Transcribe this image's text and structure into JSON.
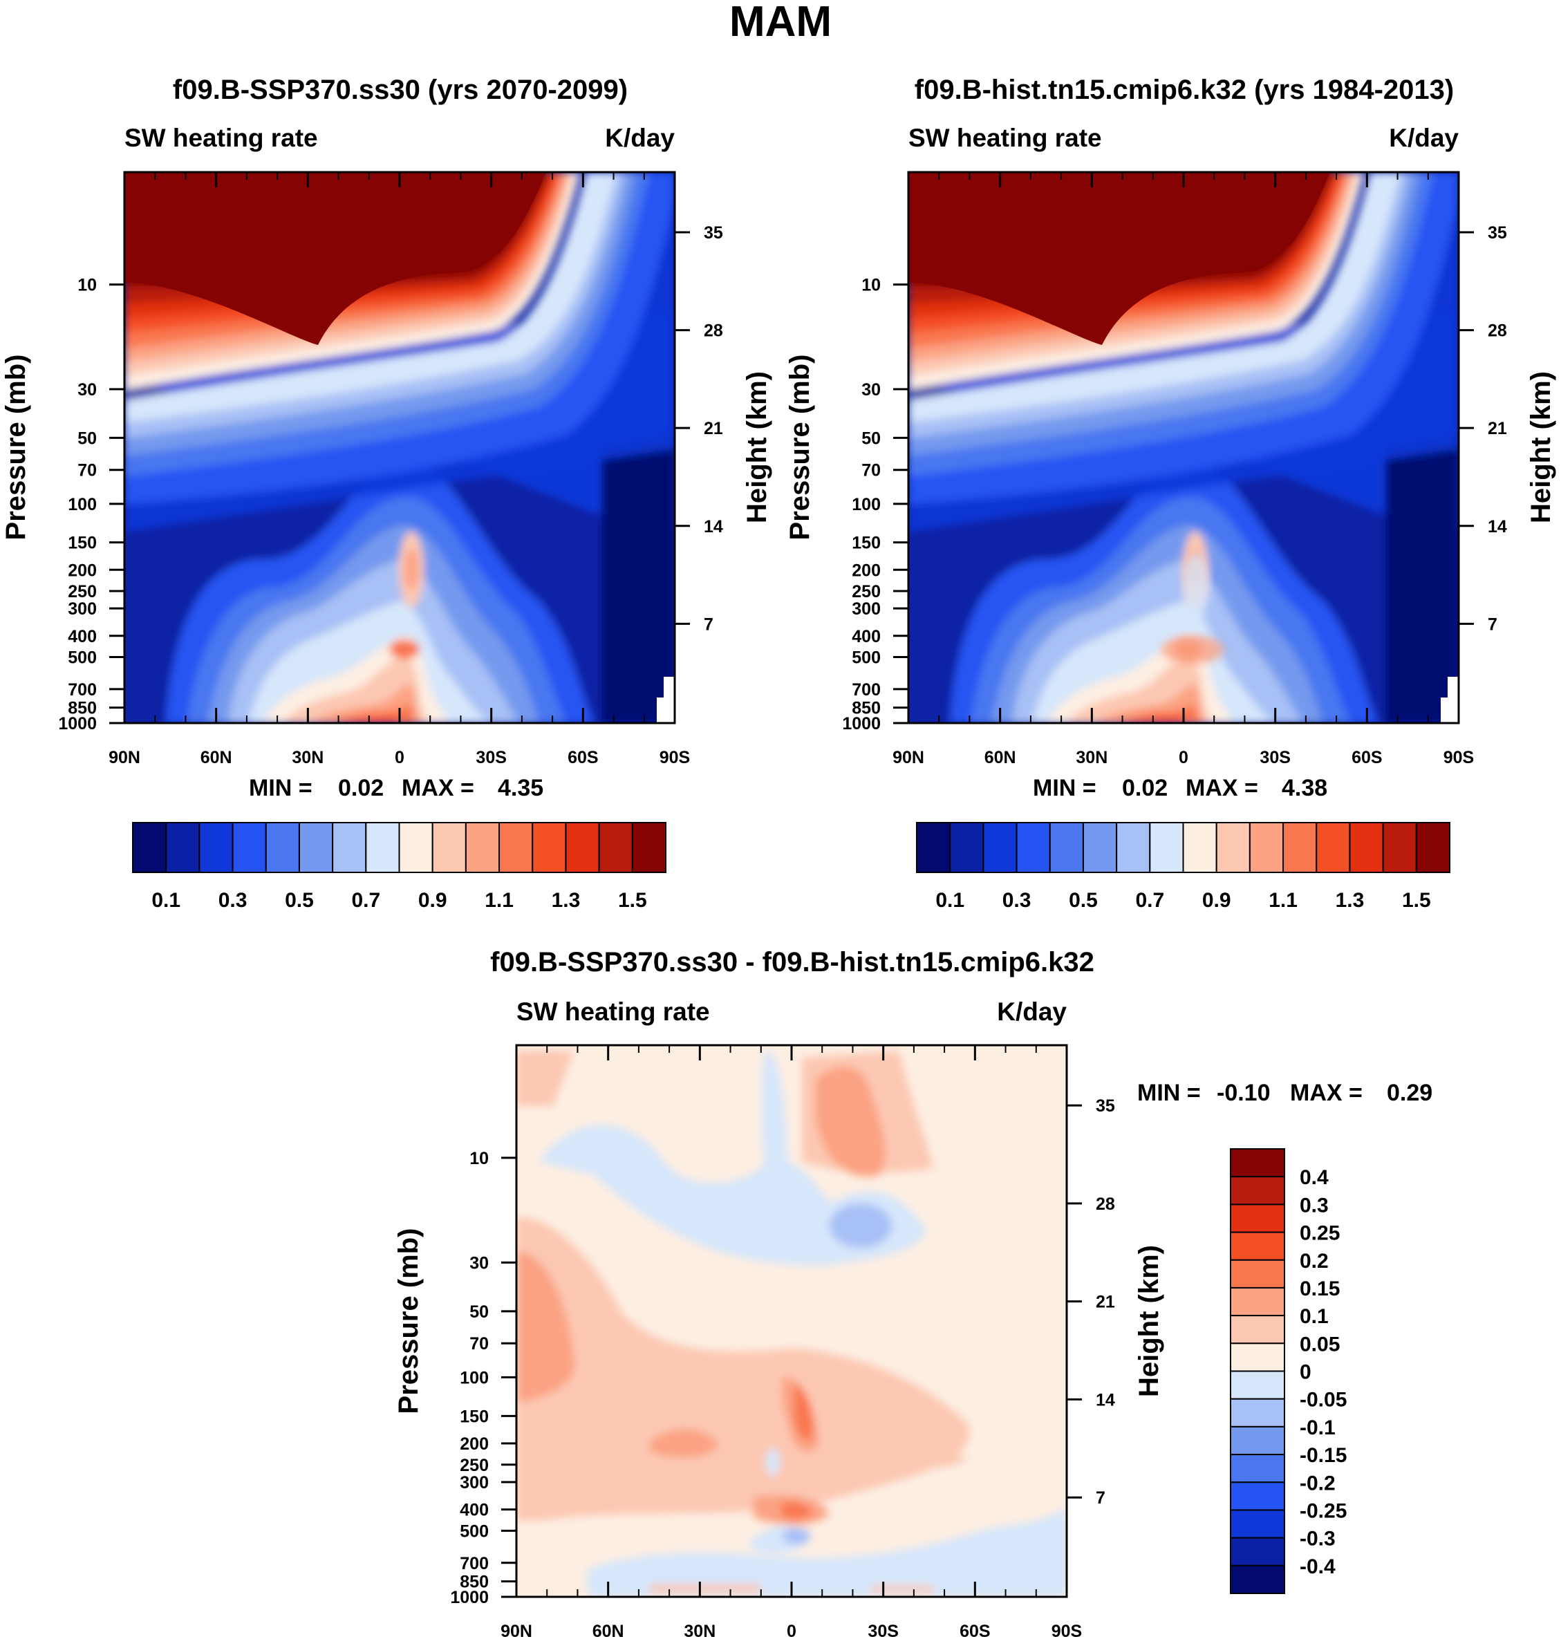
{
  "figure_title": "MAM",
  "chart_data": [
    {
      "type": "heatmap",
      "title": "f09.B-SSP370.ss30 (yrs 2070-2099)",
      "left_label": "SW heating rate",
      "right_label": "K/day",
      "xlabel": "",
      "ylabel": "Pressure (mb)",
      "ylabel_right": "Height (km)",
      "x_ticks": [
        "90N",
        "60N",
        "30N",
        "0",
        "30S",
        "60S",
        "90S"
      ],
      "y_ticks": [
        "10",
        "30",
        "50",
        "70",
        "100",
        "150",
        "200",
        "250",
        "300",
        "400",
        "500",
        "700",
        "850",
        "1000"
      ],
      "y_ticks_right": [
        "35",
        "28",
        "21",
        "14",
        "7"
      ],
      "min_label": "MIN =",
      "min": "0.02",
      "max_label": "MAX =",
      "max": "4.35",
      "colorbar_labels": [
        "0.1",
        "0.3",
        "0.5",
        "0.7",
        "0.9",
        "1.1",
        "1.3",
        "1.5"
      ],
      "colorbar_levels": [
        0.1,
        0.2,
        0.3,
        0.4,
        0.5,
        0.6,
        0.7,
        0.8,
        0.9,
        1.0,
        1.1,
        1.2,
        1.3,
        1.4,
        1.5
      ]
    },
    {
      "type": "heatmap",
      "title": "f09.B-hist.tn15.cmip6.k32 (yrs 1984-2013)",
      "left_label": "SW heating rate",
      "right_label": "K/day",
      "xlabel": "",
      "ylabel": "Pressure (mb)",
      "ylabel_right": "Height (km)",
      "x_ticks": [
        "90N",
        "60N",
        "30N",
        "0",
        "30S",
        "60S",
        "90S"
      ],
      "y_ticks": [
        "10",
        "30",
        "50",
        "70",
        "100",
        "150",
        "200",
        "250",
        "300",
        "400",
        "500",
        "700",
        "850",
        "1000"
      ],
      "y_ticks_right": [
        "35",
        "28",
        "21",
        "14",
        "7"
      ],
      "min_label": "MIN =",
      "min": "0.02",
      "max_label": "MAX =",
      "max": "4.38",
      "colorbar_labels": [
        "0.1",
        "0.3",
        "0.5",
        "0.7",
        "0.9",
        "1.1",
        "1.3",
        "1.5"
      ],
      "colorbar_levels": [
        0.1,
        0.2,
        0.3,
        0.4,
        0.5,
        0.6,
        0.7,
        0.8,
        0.9,
        1.0,
        1.1,
        1.2,
        1.3,
        1.4,
        1.5
      ]
    },
    {
      "type": "heatmap",
      "title": "f09.B-SSP370.ss30 - f09.B-hist.tn15.cmip6.k32",
      "left_label": "SW heating rate",
      "right_label": "K/day",
      "xlabel": "",
      "ylabel": "Pressure (mb)",
      "ylabel_right": "Height (km)",
      "x_ticks": [
        "90N",
        "60N",
        "30N",
        "0",
        "30S",
        "60S",
        "90S"
      ],
      "y_ticks": [
        "10",
        "30",
        "50",
        "70",
        "100",
        "150",
        "200",
        "250",
        "300",
        "400",
        "500",
        "700",
        "850",
        "1000"
      ],
      "y_ticks_right": [
        "35",
        "28",
        "21",
        "14",
        "7"
      ],
      "min_label": "MIN =",
      "min": "-0.10",
      "max_label": "MAX =",
      "max": "0.29",
      "colorbar_labels": [
        "0.4",
        "0.3",
        "0.25",
        "0.2",
        "0.15",
        "0.1",
        "0.05",
        "0",
        "-0.05",
        "-0.1",
        "-0.15",
        "-0.2",
        "-0.25",
        "-0.3",
        "-0.4"
      ],
      "colorbar_levels": [
        -0.4,
        -0.3,
        -0.25,
        -0.2,
        -0.15,
        -0.1,
        -0.05,
        0,
        0.05,
        0.1,
        0.15,
        0.2,
        0.25,
        0.3,
        0.4
      ]
    }
  ],
  "colors": {
    "palette16": [
      "#030a6f",
      "#0b21a5",
      "#1038d9",
      "#2654f2",
      "#4a77f0",
      "#7599ee",
      "#a7c0f5",
      "#d6e6fb",
      "#fdeee2",
      "#fcc8b2",
      "#fba383",
      "#f9774f",
      "#f45026",
      "#e23010",
      "#b81c0c",
      "#850303"
    ]
  }
}
